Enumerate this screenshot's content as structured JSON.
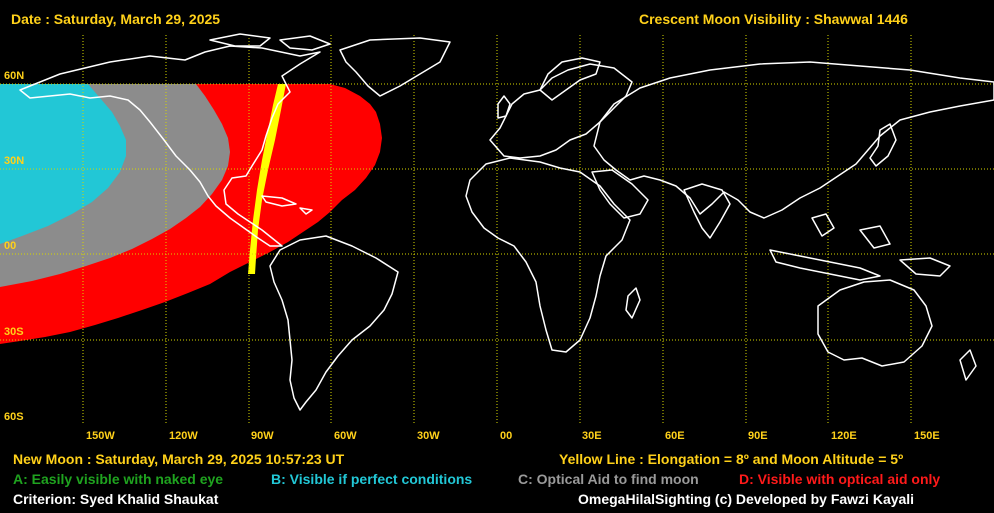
{
  "header": {
    "date": "Date : Saturday, March 29, 2025",
    "title": "Crescent Moon Visibility : Shawwal  1446"
  },
  "latitude_labels": [
    "60N",
    "30N",
    "00",
    "30S",
    "60S"
  ],
  "longitude_labels": [
    "150W",
    "120W",
    "90W",
    "60W",
    "30W",
    "00",
    "30E",
    "60E",
    "90E",
    "120E",
    "150E"
  ],
  "footer": {
    "new_moon": "New Moon : Saturday, March 29, 2025  10:57:23  UT",
    "yellow_line": "Yellow Line : Elongation = 8º  and Moon Altitude = 5º",
    "criterion": "Criterion: Syed Khalid Shaukat",
    "credit": "OmegaHilalSighting  (c)  Developed by Fawzi Kayali"
  },
  "legend": [
    {
      "code": "A",
      "label": "A: Easily visible with naked eye",
      "color": "#1fa31f"
    },
    {
      "code": "B",
      "label": "B: Visible if perfect conditions",
      "color": "#22c7d6"
    },
    {
      "code": "C",
      "label": "C: Optical Aid to find moon",
      "color": "#9a9a9a"
    },
    {
      "code": "D",
      "label": "D: Visible with optical aid only",
      "color": "#ff1a1a"
    }
  ],
  "colors": {
    "background": "#000000",
    "text_accent": "#ffd11a",
    "gridline": "#d6d600",
    "coastline": "#ffffff",
    "zone_B": "#22c7d6",
    "zone_C": "#8c8c8c",
    "zone_D": "#ff0000",
    "yellow_line": "#ffff00"
  }
}
